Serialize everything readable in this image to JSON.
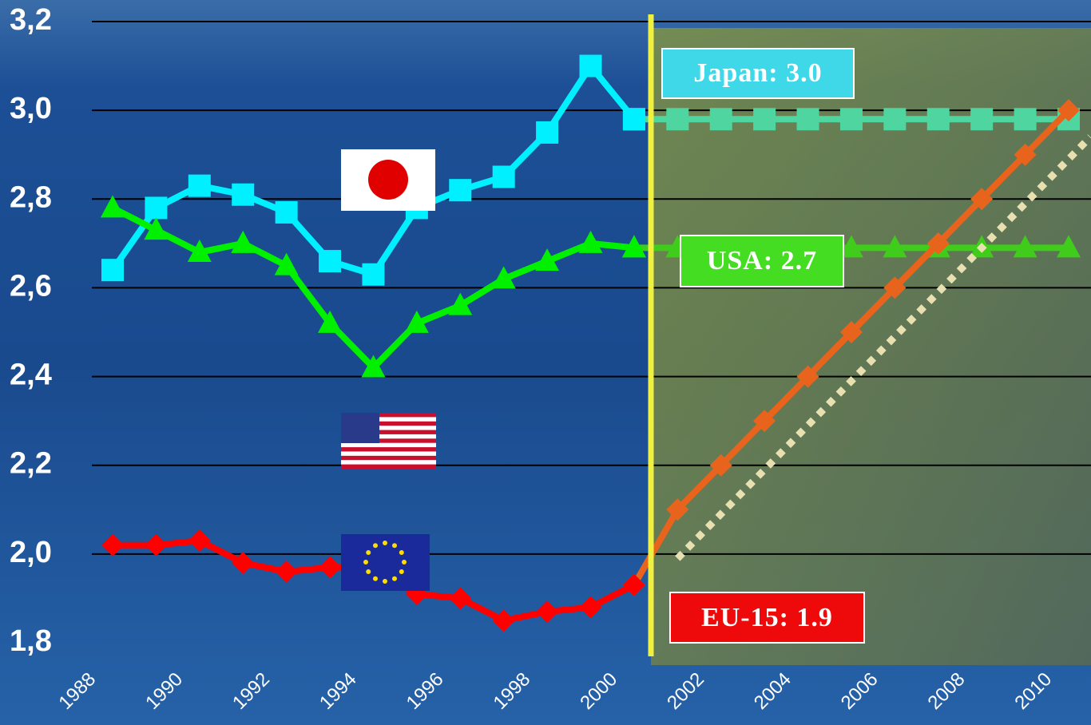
{
  "chart_data": {
    "type": "line",
    "xlim": [
      1988,
      2010
    ],
    "xticks": [
      1988,
      1990,
      1992,
      1994,
      1996,
      1998,
      2000,
      2002,
      2004,
      2006,
      2008,
      2010
    ],
    "ylim": [
      1.8,
      3.2
    ],
    "yticks": [
      {
        "value": 1.8,
        "label": "1,8"
      },
      {
        "value": 2.0,
        "label": "2,0"
      },
      {
        "value": 2.2,
        "label": "2,2"
      },
      {
        "value": 2.4,
        "label": "2,4"
      },
      {
        "value": 2.6,
        "label": "2,6"
      },
      {
        "value": 2.8,
        "label": "2,8"
      },
      {
        "value": 3.0,
        "label": "3,0"
      },
      {
        "value": 3.2,
        "label": "3,2"
      }
    ],
    "grid": true,
    "series": [
      {
        "color": "#00e5f5",
        "marker": "square",
        "x": [
          2000,
          2001,
          2002,
          2003,
          2004,
          2005,
          2006,
          2007,
          2008,
          2009,
          2010
        ],
        "values": [
          2.98,
          2.98,
          2.98,
          2.98,
          2.98,
          2.98,
          2.98,
          2.98,
          2.98,
          2.98,
          2.98
        ],
        "projection_color": "#4fd6a0"
      },
      {
        "color": "#00f0ff",
        "marker": "square",
        "x": [
          1988,
          1989,
          1990,
          1991,
          1992,
          1993,
          1994,
          1995,
          1996,
          1997,
          1998,
          1999,
          2000
        ],
        "values": [
          2.64,
          2.78,
          2.83,
          2.81,
          2.77,
          2.66,
          2.63,
          2.78,
          2.82,
          2.85,
          2.95,
          3.1,
          2.98
        ]
      },
      {
        "color": "#3fcc1a",
        "marker": "triangle",
        "x": [
          2000,
          2001,
          2002,
          2003,
          2004,
          2005,
          2006,
          2007,
          2008,
          2009,
          2010
        ],
        "values": [
          2.69,
          2.69,
          2.69,
          2.69,
          2.69,
          2.69,
          2.69,
          2.69,
          2.69,
          2.69,
          2.69
        ]
      },
      {
        "color": "#00f000",
        "marker": "triangle",
        "x": [
          1988,
          1989,
          1990,
          1991,
          1992,
          1993,
          1994,
          1995,
          1996,
          1997,
          1998,
          1999,
          2000
        ],
        "values": [
          2.78,
          2.73,
          2.68,
          2.7,
          2.65,
          2.52,
          2.42,
          2.52,
          2.56,
          2.62,
          2.66,
          2.7,
          2.69
        ]
      },
      {
        "color": "#e8641c",
        "marker": "diamond",
        "x": [
          2000,
          2001,
          2002,
          2003,
          2004,
          2005,
          2006,
          2007,
          2008,
          2009,
          2010
        ],
        "values": [
          1.93,
          2.1,
          2.2,
          2.3,
          2.4,
          2.5,
          2.6,
          2.7,
          2.8,
          2.9,
          3.0
        ]
      },
      {
        "color": "#ff0000",
        "marker": "diamond",
        "x": [
          1988,
          1989,
          1990,
          1991,
          1992,
          1993,
          1994,
          1995,
          1996,
          1997,
          1998,
          1999,
          2000
        ],
        "values": [
          2.02,
          2.02,
          2.03,
          1.98,
          1.96,
          1.97,
          1.97,
          1.91,
          1.9,
          1.85,
          1.87,
          1.88,
          1.93
        ]
      },
      {
        "color": "#e8e0b0",
        "marker": "none",
        "dashed": true,
        "x": [
          2001,
          2010.5
        ],
        "values": [
          1.99,
          2.94
        ]
      }
    ],
    "annotations": {
      "japan": "Japan: 3.0",
      "usa": "USA: 2.7",
      "eu": "EU-15: 1.9"
    }
  }
}
